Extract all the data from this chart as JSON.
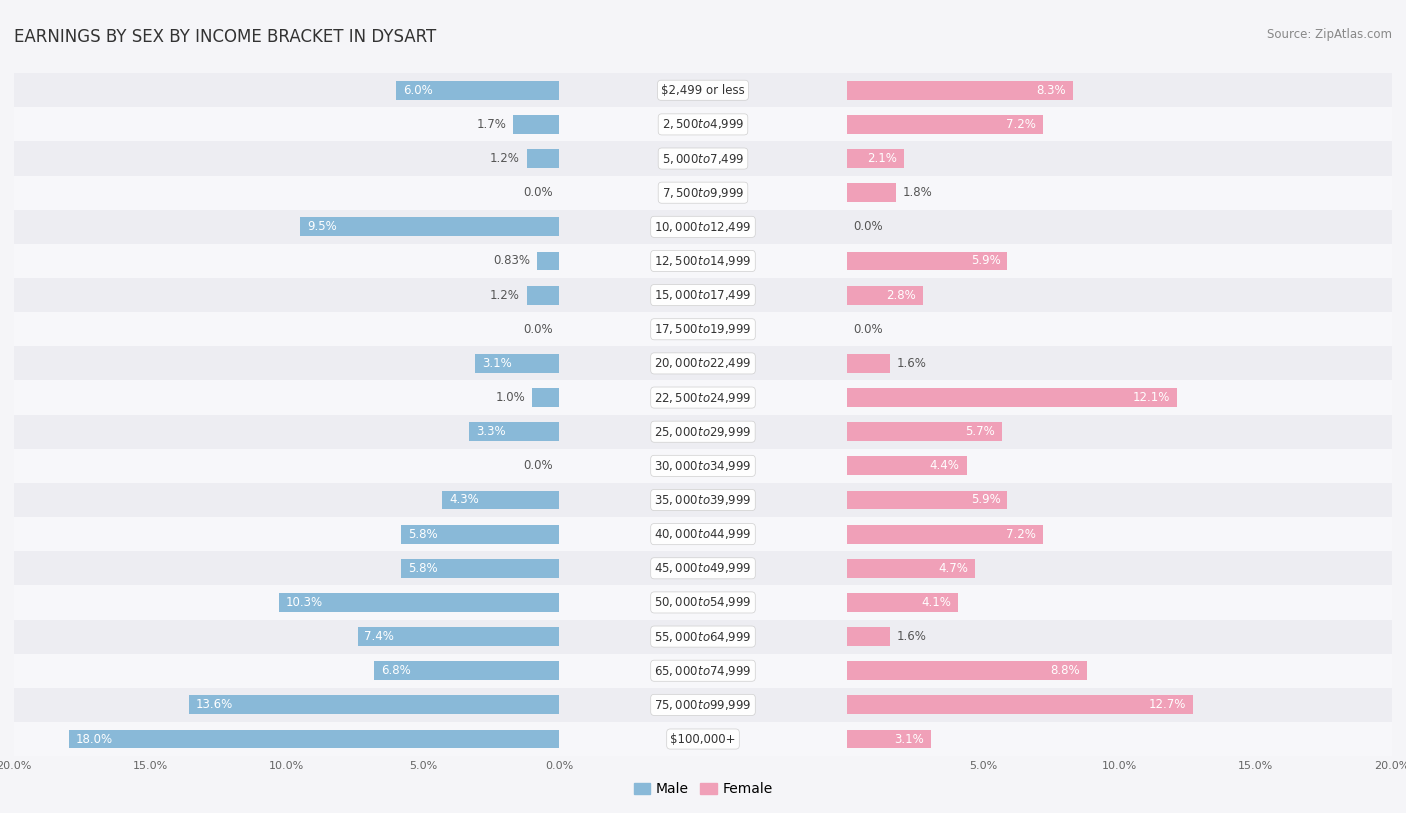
{
  "title": "EARNINGS BY SEX BY INCOME BRACKET IN DYSART",
  "source": "Source: ZipAtlas.com",
  "categories": [
    "$2,499 or less",
    "$2,500 to $4,999",
    "$5,000 to $7,499",
    "$7,500 to $9,999",
    "$10,000 to $12,499",
    "$12,500 to $14,999",
    "$15,000 to $17,499",
    "$17,500 to $19,999",
    "$20,000 to $22,499",
    "$22,500 to $24,999",
    "$25,000 to $29,999",
    "$30,000 to $34,999",
    "$35,000 to $39,999",
    "$40,000 to $44,999",
    "$45,000 to $49,999",
    "$50,000 to $54,999",
    "$55,000 to $64,999",
    "$65,000 to $74,999",
    "$75,000 to $99,999",
    "$100,000+"
  ],
  "male_values": [
    6.0,
    1.7,
    1.2,
    0.0,
    9.5,
    0.83,
    1.2,
    0.0,
    3.1,
    1.0,
    3.3,
    0.0,
    4.3,
    5.8,
    5.8,
    10.3,
    7.4,
    6.8,
    13.6,
    18.0
  ],
  "female_values": [
    8.3,
    7.2,
    2.1,
    1.8,
    0.0,
    5.9,
    2.8,
    0.0,
    1.6,
    12.1,
    5.7,
    4.4,
    5.9,
    7.2,
    4.7,
    4.1,
    1.6,
    8.8,
    12.7,
    3.1
  ],
  "male_color": "#89b9d8",
  "female_color": "#f0a0b8",
  "bg_odd": "#ededf2",
  "bg_even": "#f7f7fa",
  "axis_max": 20.0,
  "bar_height": 0.55,
  "label_fontsize": 8.5,
  "title_fontsize": 12,
  "category_fontsize": 8.5,
  "source_fontsize": 8.5
}
